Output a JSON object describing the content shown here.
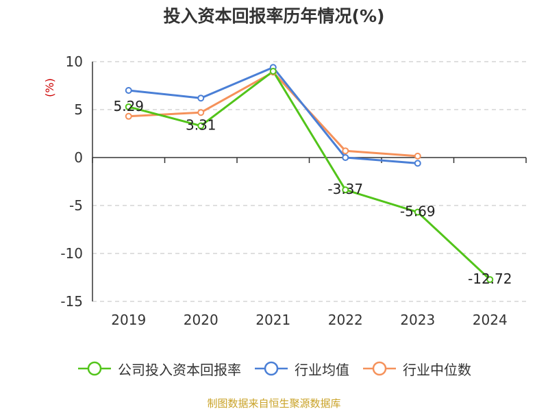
{
  "chart_data": {
    "type": "line",
    "title": "投入资本回报率历年情况(%)",
    "ylabel": "(%)",
    "xlabel": "",
    "categories": [
      "2019",
      "2020",
      "2021",
      "2022",
      "2023",
      "2024"
    ],
    "ylim": [
      -15,
      10
    ],
    "yticks": [
      10,
      5,
      0,
      -5,
      -10,
      -15
    ],
    "grid": true,
    "legend_position": "bottom",
    "series": [
      {
        "name": "公司投入资本回报率",
        "color": "#52c41a",
        "values": [
          5.29,
          3.31,
          9.0,
          -3.37,
          -5.69,
          -12.72
        ],
        "labels": [
          "5.29",
          "3.31",
          null,
          "-3.37",
          "-5.69",
          "-12.72"
        ]
      },
      {
        "name": "行业均值",
        "color": "#4a7fd6",
        "values": [
          7.0,
          6.2,
          9.4,
          0.0,
          -0.6,
          null
        ]
      },
      {
        "name": "行业中位数",
        "color": "#f5915a",
        "values": [
          4.3,
          4.7,
          8.9,
          0.7,
          0.15,
          null
        ]
      }
    ]
  },
  "source_note": "制图数据来自恒生聚源数据库"
}
